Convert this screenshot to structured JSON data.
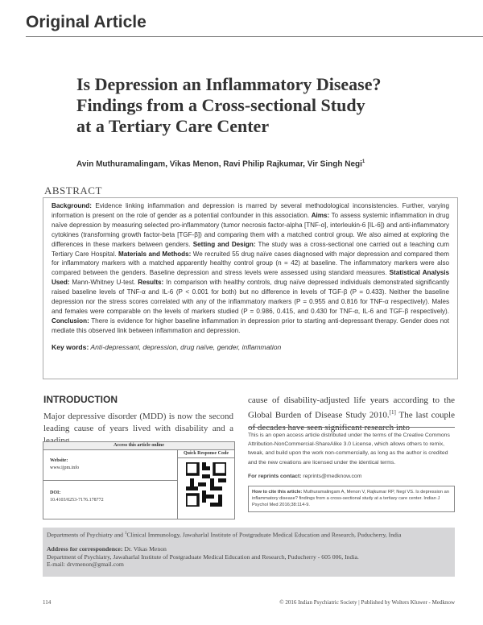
{
  "article_type": "Original Article",
  "title": [
    "Is Depression an Inflammatory Disease?",
    "Findings from a Cross-sectional Study",
    "at a Tertiary Care Center"
  ],
  "authors": "Avin Muthuramalingam, Vikas Menon, Ravi Philip Rajkumar, Vir Singh Negi",
  "author_sup": "1",
  "abstract": {
    "heading": "ABSTRACT",
    "parts": [
      {
        "label": "Background:",
        "text": " Evidence linking inflammation and depression is marred by several methodological inconsistencies. Further, varying information is present on the role of gender as a potential confounder in this association. "
      },
      {
        "label": "Aims:",
        "text": " To assess systemic inflammation in drug naïve depression by measuring selected pro-inflammatory (tumor necrosis factor-alpha [TNF-α], interleukin-6 [IL-6]) and anti-inflammatory cytokines (transforming growth factor-beta [TGF-β]) and comparing them with a matched control group. We also aimed at exploring the differences in these markers between genders. "
      },
      {
        "label": "Setting and Design:",
        "text": " The study was a cross-sectional one carried out a teaching cum Tertiary Care Hospital. "
      },
      {
        "label": "Materials and Methods:",
        "text": " We recruited 55 drug naïve cases diagnosed with major depression and compared them for inflammatory markers with a matched apparently healthy control group (n = 42) at baseline. The inflammatory markers were also compared between the genders. Baseline depression and stress levels were assessed using standard measures. "
      },
      {
        "label": "Statistical Analysis Used:",
        "text": " Mann-Whitney U-test. "
      },
      {
        "label": "Results:",
        "text": " In comparison with healthy controls, drug naïve depressed individuals demonstrated significantly raised baseline levels of TNF-α and IL-6 (P < 0.001 for both) but no difference in levels of TGF-β (P = 0.433). Neither the baseline depression nor the stress scores correlated with any of the inflammatory markers (P = 0.955 and 0.816 for TNF-α respectively). Males and females were comparable on the levels of markers studied (P = 0.986, 0.415, and 0.430 for TNF-α, IL-6 and TGF-β respectively). "
      },
      {
        "label": "Conclusion:",
        "text": " There is evidence for higher baseline inflammation in depression prior to starting anti-depressant therapy. Gender does not mediate this observed link between inflammation and depression."
      }
    ],
    "keywords_label": "Key words:",
    "keywords": " Anti-depressant, depression, drug naïve, gender, inflammation"
  },
  "intro": {
    "heading": "INTRODUCTION",
    "left": "Major depressive disorder (MDD) is now the second leading cause of years lived with disability and a leading",
    "right_a": "cause of disability-adjusted life years according to the Global Burden of Disease Study 2010.",
    "right_ref": "[1]",
    "right_b": " The last couple of decades have seen significant research into"
  },
  "access_box": {
    "header": "Access this article online",
    "qr_label": "Quick Response Code",
    "website_label": "Website:",
    "website": "www.ijpm.info",
    "doi_label": "DOI:",
    "doi": "10.4103/0253-7176.178772"
  },
  "open_access": "This is an open access article distributed under the terms of the Creative Commons Attribution-NonCommercial-ShareAlike 3.0 License, which allows others to remix, tweak, and build upon the work non-commercially, as long as the author is credited and the new creations are licensed under the identical terms.",
  "reprints_label": "For reprints contact:",
  "reprints_email": " reprints@medknow.com",
  "cite_label": "How to cite this article:",
  "cite_text": " Muthuramalingam A, Menon V, Rajkumar RP, Negi VS. Is depression an inflammatory disease? findings from a cross-sectional study at a tertiary care center. Indian J Psychol Med 2016;38:114-9.",
  "footer_box": {
    "affiliation_a": "Departments of Psychiatry and ",
    "affiliation_sup": "1",
    "affiliation_b": "Clinical Immunology, Jawaharlal Institute of Postgraduate Medical Education and Research, Puducherry, India",
    "corr_label": "Address for correspondence:",
    "corr_name": " Dr. Vikas Menon",
    "corr_address": "Department of Psychiatry, Jawaharlal Institute of Postgraduate Medical Education and Research, Puducherry - 605 006, India.",
    "email": "E-mail: drvmenon@gmail.com"
  },
  "page_number": "114",
  "copyright": "© 2016 Indian Psychiatric Society | Published by Wolters Kluwer - Medknow"
}
